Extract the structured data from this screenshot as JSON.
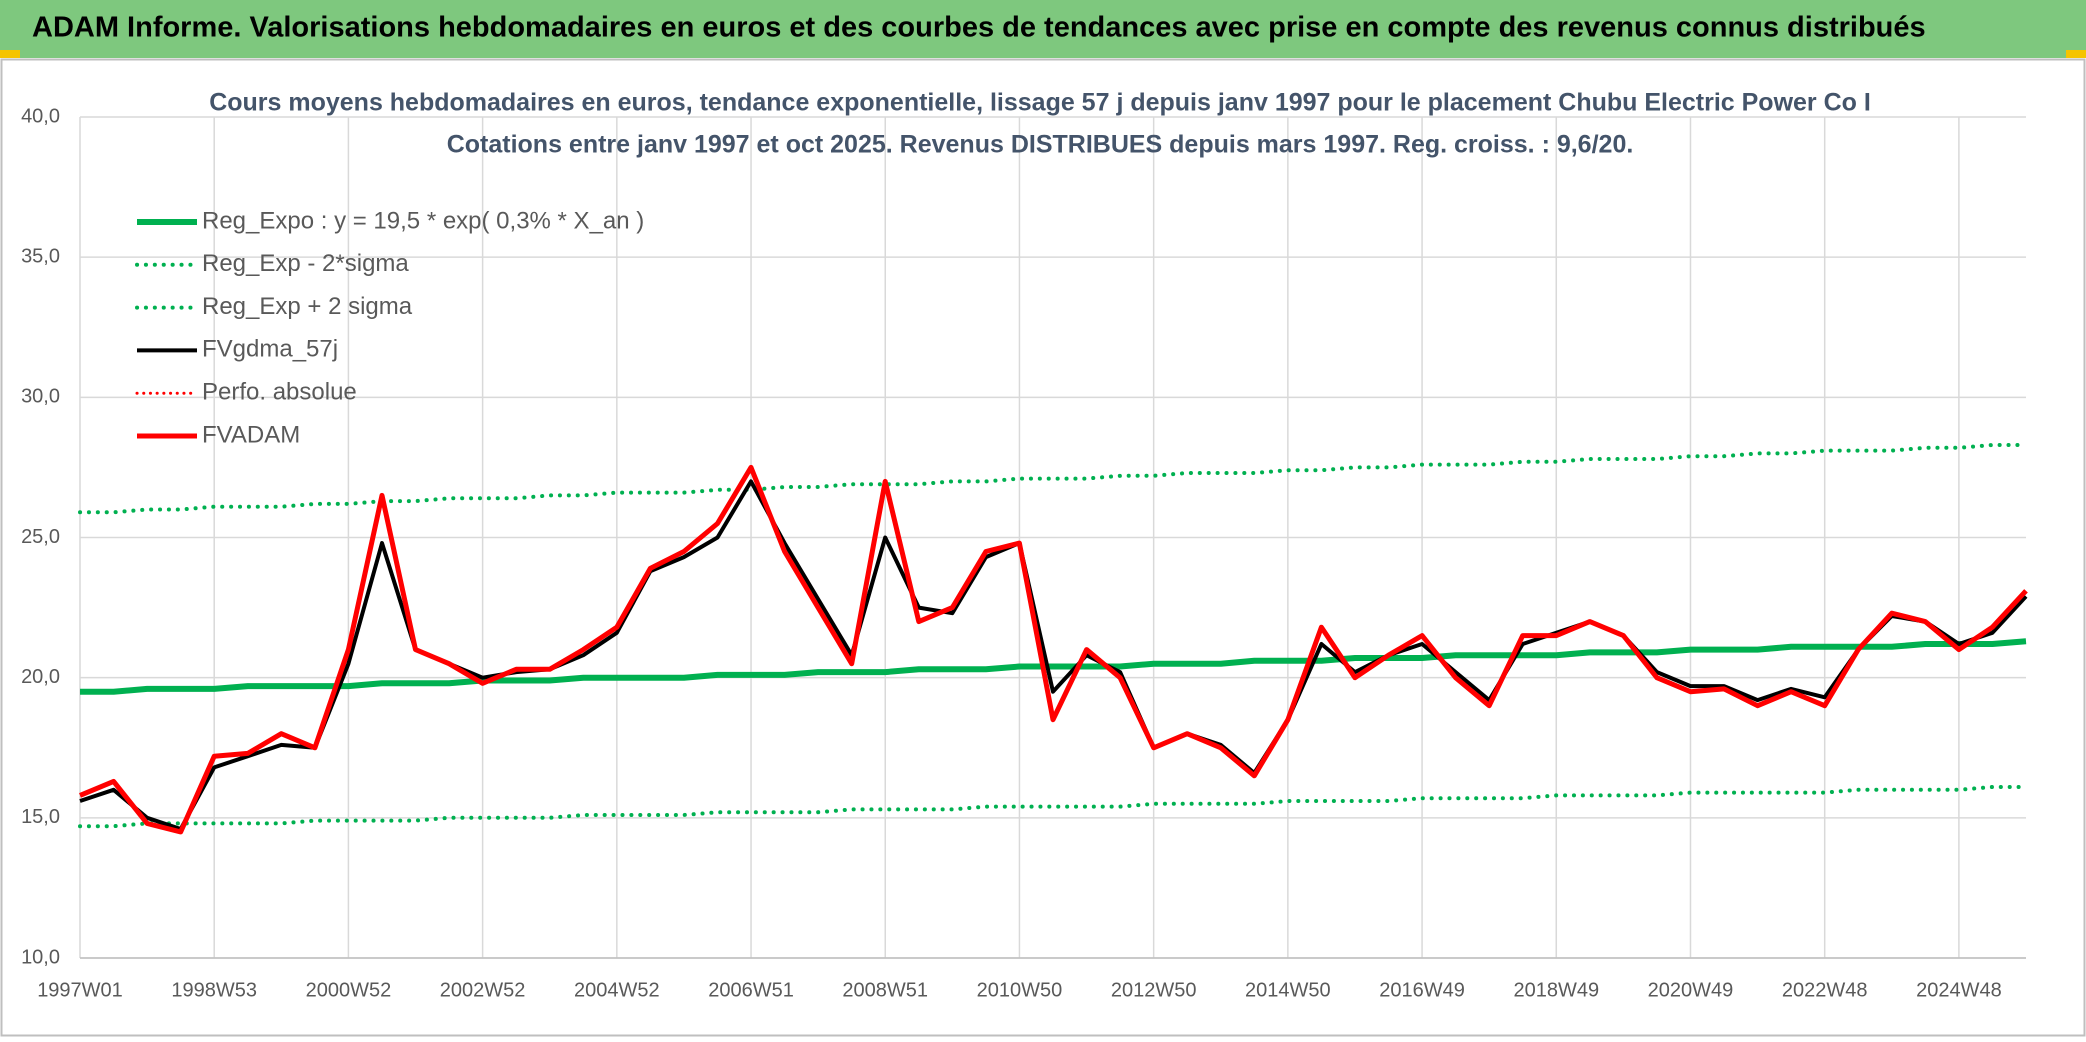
{
  "header": {
    "title": "ADAM Informe. Valorisations hebdomadaires en euros et des courbes de tendances avec prise en compte des revenus connus distribués"
  },
  "chart_data": {
    "type": "line",
    "title": "Cours moyens hebdomadaires en euros, tendance exponentielle, lissage 57 j depuis janv 1997 pour le placement Chubu Electric Power Co I",
    "subtitle": "Cotations entre janv 1997 et oct 2025. Revenus DISTRIBUES depuis mars 1997. Reg. croiss. : 9,6/20.",
    "categories": [
      "1997W01",
      null,
      null,
      null,
      "1998W53",
      null,
      null,
      null,
      "2000W52",
      null,
      null,
      null,
      "2002W52",
      null,
      null,
      null,
      "2004W52",
      null,
      null,
      null,
      "2006W51",
      null,
      null,
      null,
      "2008W51",
      null,
      null,
      null,
      "2010W50",
      null,
      null,
      null,
      "2012W50",
      null,
      null,
      null,
      "2014W50",
      null,
      null,
      null,
      "2016W49",
      null,
      null,
      null,
      "2018W49",
      null,
      null,
      null,
      "2020W49",
      null,
      null,
      null,
      "2022W48",
      null,
      null,
      null,
      "2024W48",
      null,
      null
    ],
    "ylim": [
      10,
      40
    ],
    "yticks": [
      {
        "value": 10,
        "label": "10,0"
      },
      {
        "value": 15,
        "label": "15,0"
      },
      {
        "value": 20,
        "label": "20,0"
      },
      {
        "value": 25,
        "label": "25,0"
      },
      {
        "value": 30,
        "label": "30,0"
      },
      {
        "value": 35,
        "label": "35,0"
      },
      {
        "value": 40,
        "label": "40,0"
      }
    ],
    "grid": true,
    "legend": "top-left",
    "series": [
      {
        "name": "Reg_Expo : y = 19,5 * exp( 0,3% *  X_an )",
        "color": "#00b050",
        "style": "solid",
        "width": 6,
        "values": [
          19.5,
          19.5,
          19.6,
          19.6,
          19.6,
          19.7,
          19.7,
          19.7,
          19.7,
          19.8,
          19.8,
          19.8,
          19.9,
          19.9,
          19.9,
          20.0,
          20.0,
          20.0,
          20.0,
          20.1,
          20.1,
          20.1,
          20.2,
          20.2,
          20.2,
          20.3,
          20.3,
          20.3,
          20.4,
          20.4,
          20.4,
          20.4,
          20.5,
          20.5,
          20.5,
          20.6,
          20.6,
          20.6,
          20.7,
          20.7,
          20.7,
          20.8,
          20.8,
          20.8,
          20.8,
          20.9,
          20.9,
          20.9,
          21.0,
          21.0,
          21.0,
          21.1,
          21.1,
          21.1,
          21.1,
          21.2,
          21.2,
          21.2,
          21.3
        ]
      },
      {
        "name": "Reg_Exp - 2*sigma",
        "color": "#00b050",
        "style": "dotted",
        "width": 4,
        "values": [
          14.7,
          14.7,
          14.8,
          14.8,
          14.8,
          14.8,
          14.8,
          14.9,
          14.9,
          14.9,
          14.9,
          15.0,
          15.0,
          15.0,
          15.0,
          15.1,
          15.1,
          15.1,
          15.1,
          15.2,
          15.2,
          15.2,
          15.2,
          15.3,
          15.3,
          15.3,
          15.3,
          15.4,
          15.4,
          15.4,
          15.4,
          15.4,
          15.5,
          15.5,
          15.5,
          15.5,
          15.6,
          15.6,
          15.6,
          15.6,
          15.7,
          15.7,
          15.7,
          15.7,
          15.8,
          15.8,
          15.8,
          15.8,
          15.9,
          15.9,
          15.9,
          15.9,
          15.9,
          16.0,
          16.0,
          16.0,
          16.0,
          16.1,
          16.1
        ]
      },
      {
        "name": "Reg_Exp + 2 sigma",
        "color": "#00b050",
        "style": "dotted",
        "width": 4,
        "values": [
          25.9,
          25.9,
          26.0,
          26.0,
          26.1,
          26.1,
          26.1,
          26.2,
          26.2,
          26.3,
          26.3,
          26.4,
          26.4,
          26.4,
          26.5,
          26.5,
          26.6,
          26.6,
          26.6,
          26.7,
          26.7,
          26.8,
          26.8,
          26.9,
          26.9,
          26.9,
          27.0,
          27.0,
          27.1,
          27.1,
          27.1,
          27.2,
          27.2,
          27.3,
          27.3,
          27.3,
          27.4,
          27.4,
          27.5,
          27.5,
          27.6,
          27.6,
          27.6,
          27.7,
          27.7,
          27.8,
          27.8,
          27.8,
          27.9,
          27.9,
          28.0,
          28.0,
          28.1,
          28.1,
          28.1,
          28.2,
          28.2,
          28.3,
          28.3
        ]
      },
      {
        "name": "FVgdma_57j",
        "color": "#000000",
        "style": "solid",
        "width": 4,
        "values": [
          15.6,
          16.0,
          15.0,
          14.6,
          16.8,
          17.2,
          17.6,
          17.5,
          20.5,
          24.8,
          21.0,
          20.5,
          20.0,
          20.2,
          20.3,
          20.8,
          21.6,
          23.8,
          24.3,
          25.0,
          27.0,
          24.8,
          22.8,
          20.8,
          25.0,
          22.5,
          22.3,
          24.3,
          24.8,
          19.5,
          20.8,
          20.2,
          17.5,
          18.0,
          17.6,
          16.6,
          18.5,
          21.2,
          20.2,
          20.8,
          21.2,
          20.2,
          19.2,
          21.2,
          21.6,
          22.0,
          21.5,
          20.2,
          19.7,
          19.7,
          19.2,
          19.6,
          19.3,
          21.0,
          22.2,
          22.0,
          21.2,
          21.6,
          22.9
        ]
      },
      {
        "name": "Perfo. absolue",
        "color": "#ff0000",
        "style": "dotted",
        "width": 3,
        "values": [
          null,
          null,
          null,
          null,
          null,
          null,
          null,
          null,
          null,
          null,
          null,
          null,
          null,
          null,
          null,
          null,
          null,
          null,
          null,
          null,
          null,
          null,
          null,
          null,
          null,
          null,
          null,
          null,
          null,
          null,
          null,
          null,
          null,
          null,
          null,
          null,
          null,
          null,
          null,
          null,
          null,
          null,
          null,
          null,
          null,
          null,
          null,
          null,
          null,
          null,
          null,
          null,
          null,
          null,
          null,
          null,
          null,
          null,
          null
        ]
      },
      {
        "name": "FVADAM",
        "color": "#ff0000",
        "style": "solid",
        "width": 5,
        "values": [
          15.8,
          16.3,
          14.8,
          14.5,
          17.2,
          17.3,
          18.0,
          17.5,
          21.0,
          26.5,
          21.0,
          20.5,
          19.8,
          20.3,
          20.3,
          21.0,
          21.8,
          23.9,
          24.5,
          25.5,
          27.5,
          24.5,
          22.5,
          20.5,
          27.0,
          22.0,
          22.5,
          24.5,
          24.8,
          18.5,
          21.0,
          20.0,
          17.5,
          18.0,
          17.5,
          16.5,
          18.5,
          21.8,
          20.0,
          20.8,
          21.5,
          20.0,
          19.0,
          21.5,
          21.5,
          22.0,
          21.5,
          20.0,
          19.5,
          19.6,
          19.0,
          19.5,
          19.0,
          21.0,
          22.3,
          22.0,
          21.0,
          21.8,
          23.1
        ]
      }
    ]
  }
}
